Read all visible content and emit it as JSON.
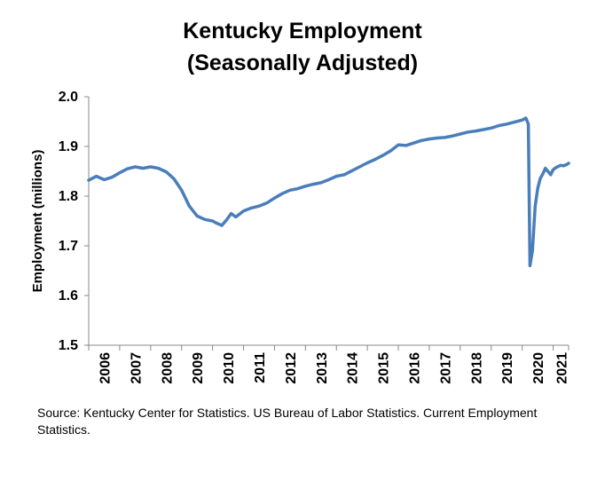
{
  "chart_data": {
    "type": "line",
    "title": "Kentucky Employment",
    "subtitle": "(Seasonally Adjusted)",
    "xlabel": "",
    "ylabel": "Employment (millions)",
    "ylim": [
      1.5,
      2.0
    ],
    "yticks": [
      "1.5",
      "1.6",
      "1.7",
      "1.8",
      "1.9",
      "2.0"
    ],
    "xlim": [
      2006.0,
      2021.5
    ],
    "xticks": [
      "2006",
      "2007",
      "2008",
      "2009",
      "2010",
      "2011",
      "2012",
      "2013",
      "2014",
      "2015",
      "2016",
      "2017",
      "2018",
      "2019",
      "2020",
      "2021"
    ],
    "grid": false,
    "legend": "none",
    "line_color": "#4A7EBB",
    "series": [
      {
        "x": [
          2006.0,
          2006.25,
          2006.5,
          2006.75,
          2007.0,
          2007.25,
          2007.5,
          2007.75,
          2008.0,
          2008.25,
          2008.5,
          2008.75,
          2009.0,
          2009.25,
          2009.5,
          2009.75,
          2010.0,
          2010.15,
          2010.3,
          2010.45,
          2010.6,
          2010.75,
          2011.0,
          2011.25,
          2011.5,
          2011.75,
          2012.0,
          2012.25,
          2012.5,
          2012.75,
          2013.0,
          2013.25,
          2013.5,
          2013.75,
          2014.0,
          2014.25,
          2014.5,
          2014.75,
          2015.0,
          2015.25,
          2015.5,
          2015.75,
          2016.0,
          2016.25,
          2016.5,
          2016.75,
          2017.0,
          2017.25,
          2017.5,
          2017.75,
          2018.0,
          2018.25,
          2018.5,
          2018.75,
          2019.0,
          2019.25,
          2019.5,
          2019.75,
          2020.0,
          2020.12,
          2020.2,
          2020.25,
          2020.33,
          2020.42,
          2020.5,
          2020.58,
          2020.67,
          2020.75,
          2020.83,
          2020.92,
          2021.0,
          2021.08,
          2021.17,
          2021.25,
          2021.33,
          2021.42,
          2021.5
        ],
        "values": [
          1.832,
          1.84,
          1.833,
          1.838,
          1.847,
          1.855,
          1.859,
          1.856,
          1.859,
          1.856,
          1.849,
          1.835,
          1.812,
          1.78,
          1.76,
          1.753,
          1.75,
          1.745,
          1.741,
          1.752,
          1.765,
          1.758,
          1.77,
          1.776,
          1.78,
          1.786,
          1.796,
          1.805,
          1.812,
          1.815,
          1.82,
          1.824,
          1.827,
          1.833,
          1.84,
          1.843,
          1.851,
          1.859,
          1.867,
          1.874,
          1.882,
          1.891,
          1.903,
          1.902,
          1.907,
          1.912,
          1.915,
          1.917,
          1.918,
          1.921,
          1.925,
          1.929,
          1.931,
          1.934,
          1.937,
          1.942,
          1.945,
          1.949,
          1.953,
          1.957,
          1.945,
          1.66,
          1.69,
          1.78,
          1.815,
          1.835,
          1.845,
          1.856,
          1.85,
          1.843,
          1.853,
          1.857,
          1.86,
          1.862,
          1.861,
          1.863,
          1.866
        ]
      }
    ]
  },
  "source_note": "Source: Kentucky Center for Statistics. US Bureau of Labor Statistics. Current Employment Statistics."
}
